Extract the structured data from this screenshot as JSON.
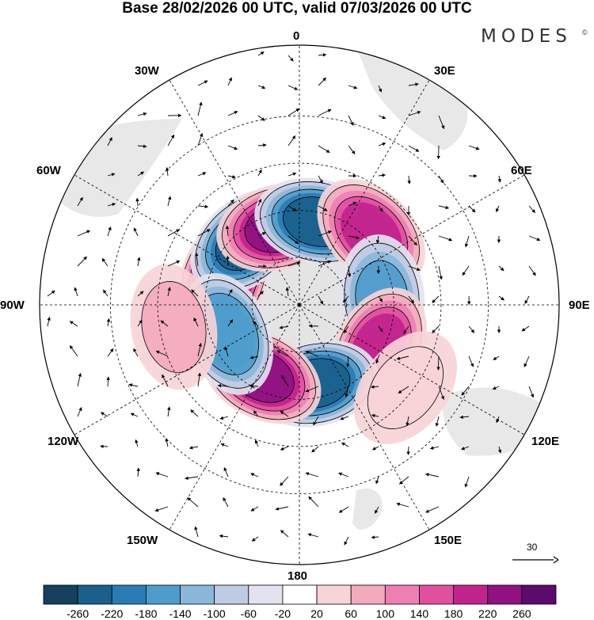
{
  "title": "Base 28/02/2026 00 UTC, valid 07/03/2026 00 UTC",
  "brand": {
    "name": "MODES",
    "mark": "©"
  },
  "longitude_labels": {
    "lon0": "0",
    "e30": "30E",
    "e60": "60E",
    "e90": "90E",
    "e120": "120E",
    "e150": "150E",
    "lon180": "180",
    "w150": "150W",
    "w120": "120W",
    "w90": "90W",
    "w60": "60W",
    "w30": "30W"
  },
  "reference_vector": {
    "label": "30"
  },
  "colorbar": {
    "tick_labels": [
      "-260",
      "-220",
      "-180",
      "-140",
      "-100",
      "-60",
      "-20",
      "20",
      "60",
      "100",
      "140",
      "180",
      "220",
      "260"
    ],
    "colors": [
      "#16405e",
      "#1b5f8c",
      "#2b7bb4",
      "#4f9ccc",
      "#8bb7d9",
      "#bdcbe3",
      "#e3e3f0",
      "#ffffff",
      "#f7d4d8",
      "#f4aabd",
      "#ee7fb2",
      "#e0509f",
      "#c0238c",
      "#8f1182",
      "#5a0b6b"
    ]
  },
  "map": {
    "projection": "south polar stereographic",
    "field": "anomaly",
    "anomaly_centers": [
      {
        "id": "pos-60w",
        "lon": -70,
        "lat": -56,
        "value": 280
      },
      {
        "id": "neg-45w",
        "lon": -40,
        "lat": -55,
        "value": -250
      },
      {
        "id": "pos-20w",
        "lon": -15,
        "lat": -56,
        "value": 230
      },
      {
        "id": "neg-0",
        "lon": 12,
        "lat": -54,
        "value": -230
      },
      {
        "id": "pos-45e",
        "lon": 45,
        "lat": -47,
        "value": 180
      },
      {
        "id": "neg-90e",
        "lon": 85,
        "lat": -55,
        "value": -160
      },
      {
        "id": "pos-115e",
        "lon": 118,
        "lat": -52,
        "value": 200
      },
      {
        "id": "neg-160e",
        "lon": 168,
        "lat": -56,
        "value": -230
      },
      {
        "id": "pos-150w",
        "lon": -152,
        "lat": -56,
        "value": 250
      },
      {
        "id": "neg-110w",
        "lon": -112,
        "lat": -57,
        "value": -180
      },
      {
        "id": "pos-100w-out",
        "lon": -100,
        "lat": -36,
        "value": 60
      },
      {
        "id": "pos-120e-out",
        "lon": 128,
        "lat": -33,
        "value": 50
      }
    ]
  }
}
